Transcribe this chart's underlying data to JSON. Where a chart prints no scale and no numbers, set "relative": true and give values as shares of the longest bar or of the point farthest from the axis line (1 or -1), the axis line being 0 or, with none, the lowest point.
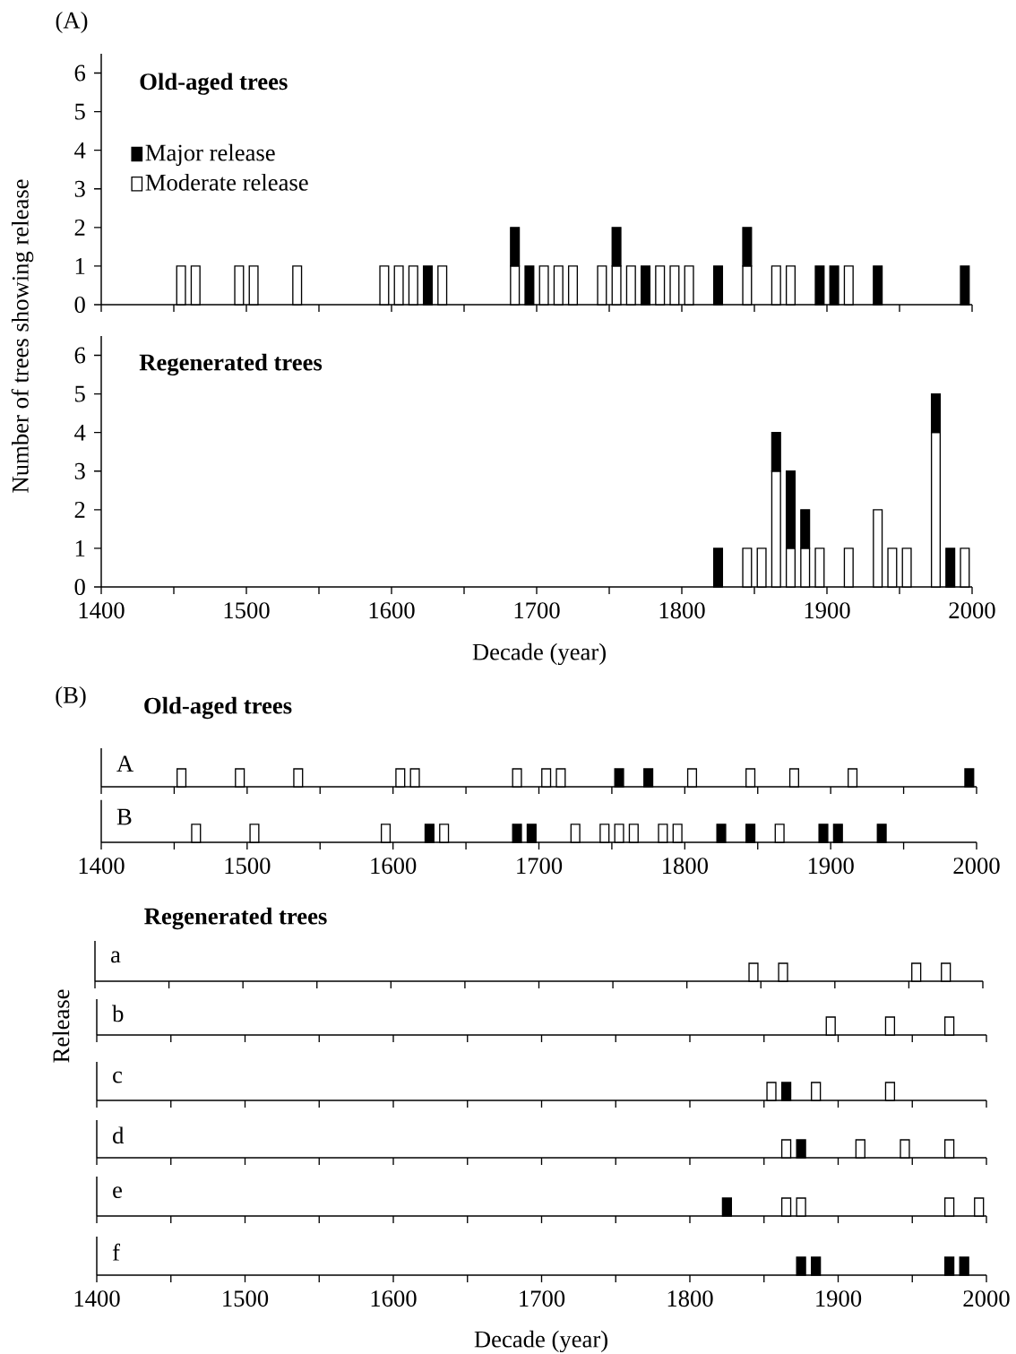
{
  "chart_data": [
    {
      "type": "bar",
      "title": "Old-aged trees",
      "annotations": [
        "(A)"
      ],
      "ylabel": "Number of trees showing release",
      "stacked": true,
      "legend": "top left",
      "tick_labels": "y",
      "xlim": [
        1400,
        2000
      ],
      "ylim": [
        0,
        6.5
      ],
      "xticks": [
        1400,
        {
          "value": 1450,
          "label": null
        },
        1500,
        {
          "value": 1550,
          "label": null
        },
        1600,
        {
          "value": 1650,
          "label": null
        },
        1700,
        {
          "value": 1750,
          "label": null
        },
        1800,
        {
          "value": 1850,
          "label": null
        },
        1900,
        {
          "value": 1950,
          "label": null
        },
        2000
      ],
      "yticks": [
        0,
        1,
        2,
        3,
        4,
        5,
        6
      ],
      "x": [
        1455,
        1465,
        1495,
        1505,
        1535,
        1595,
        1605,
        1615,
        1625,
        1635,
        1685,
        1695,
        1705,
        1715,
        1725,
        1745,
        1755,
        1765,
        1775,
        1785,
        1795,
        1805,
        1825,
        1845,
        1865,
        1875,
        1895,
        1905,
        1915,
        1935,
        1995
      ],
      "series": [
        {
          "name": "Moderate release",
          "color": "#ffffff",
          "values": [
            1,
            1,
            1,
            1,
            1,
            1,
            1,
            1,
            null,
            1,
            1,
            null,
            1,
            1,
            1,
            1,
            1,
            1,
            null,
            1,
            1,
            1,
            null,
            1,
            1,
            1,
            null,
            null,
            1,
            null,
            null
          ]
        },
        {
          "name": "Major release",
          "color": "#000000",
          "values": [
            null,
            null,
            null,
            null,
            null,
            null,
            null,
            null,
            1,
            null,
            1,
            1,
            null,
            null,
            null,
            null,
            1,
            null,
            1,
            null,
            null,
            null,
            1,
            1,
            null,
            null,
            1,
            1,
            null,
            1,
            1
          ]
        }
      ]
    },
    {
      "type": "bar",
      "title": "Regenerated trees",
      "xlabel": "Decade (year)",
      "stacked": true,
      "xlim": [
        1400,
        2000
      ],
      "ylim": [
        0,
        6.5
      ],
      "xticks": [
        1400,
        {
          "value": 1450,
          "label": null
        },
        1500,
        {
          "value": 1550,
          "label": null
        },
        1600,
        {
          "value": 1650,
          "label": null
        },
        1700,
        {
          "value": 1750,
          "label": null
        },
        1800,
        {
          "value": 1850,
          "label": null
        },
        1900,
        {
          "value": 1950,
          "label": null
        },
        2000
      ],
      "yticks": [
        0,
        1,
        2,
        3,
        4,
        5,
        6
      ],
      "x": [
        1825,
        1845,
        1855,
        1865,
        1875,
        1885,
        1895,
        1915,
        1935,
        1945,
        1955,
        1975,
        1985,
        1995
      ],
      "series": [
        {
          "color": "#ffffff",
          "values": [
            null,
            1,
            1,
            3,
            1,
            1,
            1,
            1,
            2,
            1,
            1,
            4,
            null,
            1
          ]
        },
        {
          "color": "#000000",
          "values": [
            1,
            null,
            null,
            1,
            2,
            1,
            null,
            null,
            null,
            null,
            null,
            1,
            1,
            null
          ]
        }
      ]
    },
    {
      "type": "bar",
      "title": "A",
      "annotations": [
        "(B)",
        "Old-aged trees"
      ],
      "relative": true,
      "tick_labels": false,
      "xlim": [
        1400,
        2000
      ],
      "xticks": [
        1400,
        {
          "value": 1450,
          "label": null
        },
        1500,
        {
          "value": 1550,
          "label": null
        },
        1600,
        {
          "value": 1650,
          "label": null
        },
        1700,
        {
          "value": 1750,
          "label": null
        },
        1800,
        {
          "value": 1850,
          "label": null
        },
        1900,
        {
          "value": 1950,
          "label": null
        },
        2000
      ],
      "x": [
        1455,
        1495,
        1535,
        1605,
        1615,
        1685,
        1705,
        1715,
        1755,
        1775,
        1805,
        1845,
        1875,
        1915,
        1995
      ],
      "series": [
        {
          "color": "#ffffff",
          "values": [
            1,
            1,
            1,
            1,
            1,
            1,
            1,
            1,
            null,
            null,
            1,
            1,
            1,
            1,
            null
          ]
        },
        {
          "color": "#000000",
          "values": [
            null,
            null,
            null,
            null,
            null,
            null,
            null,
            null,
            1,
            1,
            null,
            null,
            null,
            null,
            1
          ]
        }
      ]
    },
    {
      "type": "bar",
      "title": "B",
      "relative": true,
      "tick_labels": "x",
      "xlim": [
        1400,
        2000
      ],
      "xticks": [
        1400,
        {
          "value": 1450,
          "label": null
        },
        1500,
        {
          "value": 1550,
          "label": null
        },
        1600,
        {
          "value": 1650,
          "label": null
        },
        1700,
        {
          "value": 1750,
          "label": null
        },
        1800,
        {
          "value": 1850,
          "label": null
        },
        1900,
        {
          "value": 1950,
          "label": null
        },
        2000
      ],
      "x": [
        1465,
        1505,
        1595,
        1625,
        1635,
        1685,
        1695,
        1725,
        1745,
        1755,
        1765,
        1785,
        1795,
        1825,
        1845,
        1865,
        1895,
        1905,
        1935
      ],
      "series": [
        {
          "color": "#ffffff",
          "values": [
            1,
            1,
            1,
            null,
            1,
            null,
            null,
            1,
            1,
            1,
            1,
            1,
            1,
            null,
            null,
            1,
            null,
            null,
            null
          ]
        },
        {
          "color": "#000000",
          "values": [
            null,
            null,
            null,
            1,
            null,
            1,
            1,
            null,
            null,
            null,
            null,
            null,
            null,
            1,
            1,
            null,
            1,
            1,
            1
          ]
        }
      ]
    },
    {
      "type": "bar",
      "title": "a",
      "annotations": [
        "Regenerated trees"
      ],
      "ylabel": "Release",
      "relative": true,
      "tick_labels": false,
      "xlim": [
        1400,
        2000
      ],
      "xticks": [
        1400,
        {
          "value": 1450,
          "label": null
        },
        1500,
        {
          "value": 1550,
          "label": null
        },
        1600,
        {
          "value": 1650,
          "label": null
        },
        1700,
        {
          "value": 1750,
          "label": null
        },
        1800,
        {
          "value": 1850,
          "label": null
        },
        1900,
        {
          "value": 1950,
          "label": null
        },
        2000
      ],
      "x": [
        1845,
        1865,
        1955,
        1975
      ],
      "series": [
        {
          "color": "#ffffff",
          "values": [
            1,
            1,
            1,
            1
          ]
        }
      ]
    },
    {
      "type": "bar",
      "title": "b",
      "relative": true,
      "tick_labels": false,
      "xlim": [
        1400,
        2000
      ],
      "xticks": [
        1400,
        {
          "value": 1450,
          "label": null
        },
        1500,
        {
          "value": 1550,
          "label": null
        },
        1600,
        {
          "value": 1650,
          "label": null
        },
        1700,
        {
          "value": 1750,
          "label": null
        },
        1800,
        {
          "value": 1850,
          "label": null
        },
        1900,
        {
          "value": 1950,
          "label": null
        },
        2000
      ],
      "x": [
        1895,
        1935,
        1975
      ],
      "series": [
        {
          "color": "#ffffff",
          "values": [
            1,
            1,
            1
          ]
        }
      ]
    },
    {
      "type": "bar",
      "title": "c",
      "relative": true,
      "tick_labels": false,
      "xlim": [
        1400,
        2000
      ],
      "xticks": [
        1400,
        {
          "value": 1450,
          "label": null
        },
        1500,
        {
          "value": 1550,
          "label": null
        },
        1600,
        {
          "value": 1650,
          "label": null
        },
        1700,
        {
          "value": 1750,
          "label": null
        },
        1800,
        {
          "value": 1850,
          "label": null
        },
        1900,
        {
          "value": 1950,
          "label": null
        },
        2000
      ],
      "x": [
        1855,
        1865,
        1885,
        1935
      ],
      "series": [
        {
          "color": "#ffffff",
          "values": [
            1,
            null,
            1,
            1
          ]
        },
        {
          "color": "#000000",
          "values": [
            null,
            1,
            null,
            null
          ]
        }
      ]
    },
    {
      "type": "bar",
      "title": "d",
      "relative": true,
      "tick_labels": false,
      "xlim": [
        1400,
        2000
      ],
      "xticks": [
        1400,
        {
          "value": 1450,
          "label": null
        },
        1500,
        {
          "value": 1550,
          "label": null
        },
        1600,
        {
          "value": 1650,
          "label": null
        },
        1700,
        {
          "value": 1750,
          "label": null
        },
        1800,
        {
          "value": 1850,
          "label": null
        },
        1900,
        {
          "value": 1950,
          "label": null
        },
        2000
      ],
      "x": [
        1865,
        1875,
        1915,
        1945,
        1975
      ],
      "series": [
        {
          "color": "#ffffff",
          "values": [
            1,
            null,
            1,
            1,
            1
          ]
        },
        {
          "color": "#000000",
          "values": [
            null,
            1,
            null,
            null,
            null
          ]
        }
      ]
    },
    {
      "type": "bar",
      "title": "e",
      "relative": true,
      "tick_labels": false,
      "xlim": [
        1400,
        2000
      ],
      "xticks": [
        1400,
        {
          "value": 1450,
          "label": null
        },
        1500,
        {
          "value": 1550,
          "label": null
        },
        1600,
        {
          "value": 1650,
          "label": null
        },
        1700,
        {
          "value": 1750,
          "label": null
        },
        1800,
        {
          "value": 1850,
          "label": null
        },
        1900,
        {
          "value": 1950,
          "label": null
        },
        2000
      ],
      "x": [
        1825,
        1865,
        1875,
        1975,
        1995
      ],
      "series": [
        {
          "color": "#ffffff",
          "values": [
            null,
            1,
            1,
            1,
            1
          ]
        },
        {
          "color": "#000000",
          "values": [
            1,
            null,
            null,
            null,
            null
          ]
        }
      ]
    },
    {
      "type": "bar",
      "title": "f",
      "xlabel": "Decade (year)",
      "relative": true,
      "tick_labels": "x",
      "xlim": [
        1400,
        2000
      ],
      "xticks": [
        1400,
        {
          "value": 1450,
          "label": null
        },
        1500,
        {
          "value": 1550,
          "label": null
        },
        1600,
        {
          "value": 1650,
          "label": null
        },
        1700,
        {
          "value": 1750,
          "label": null
        },
        1800,
        {
          "value": 1850,
          "label": null
        },
        1900,
        {
          "value": 1950,
          "label": null
        },
        2000
      ],
      "x": [
        1875,
        1885,
        1975,
        1985
      ],
      "series": [
        {
          "color": "#000000",
          "values": [
            1,
            1,
            1,
            1
          ]
        }
      ]
    }
  ]
}
